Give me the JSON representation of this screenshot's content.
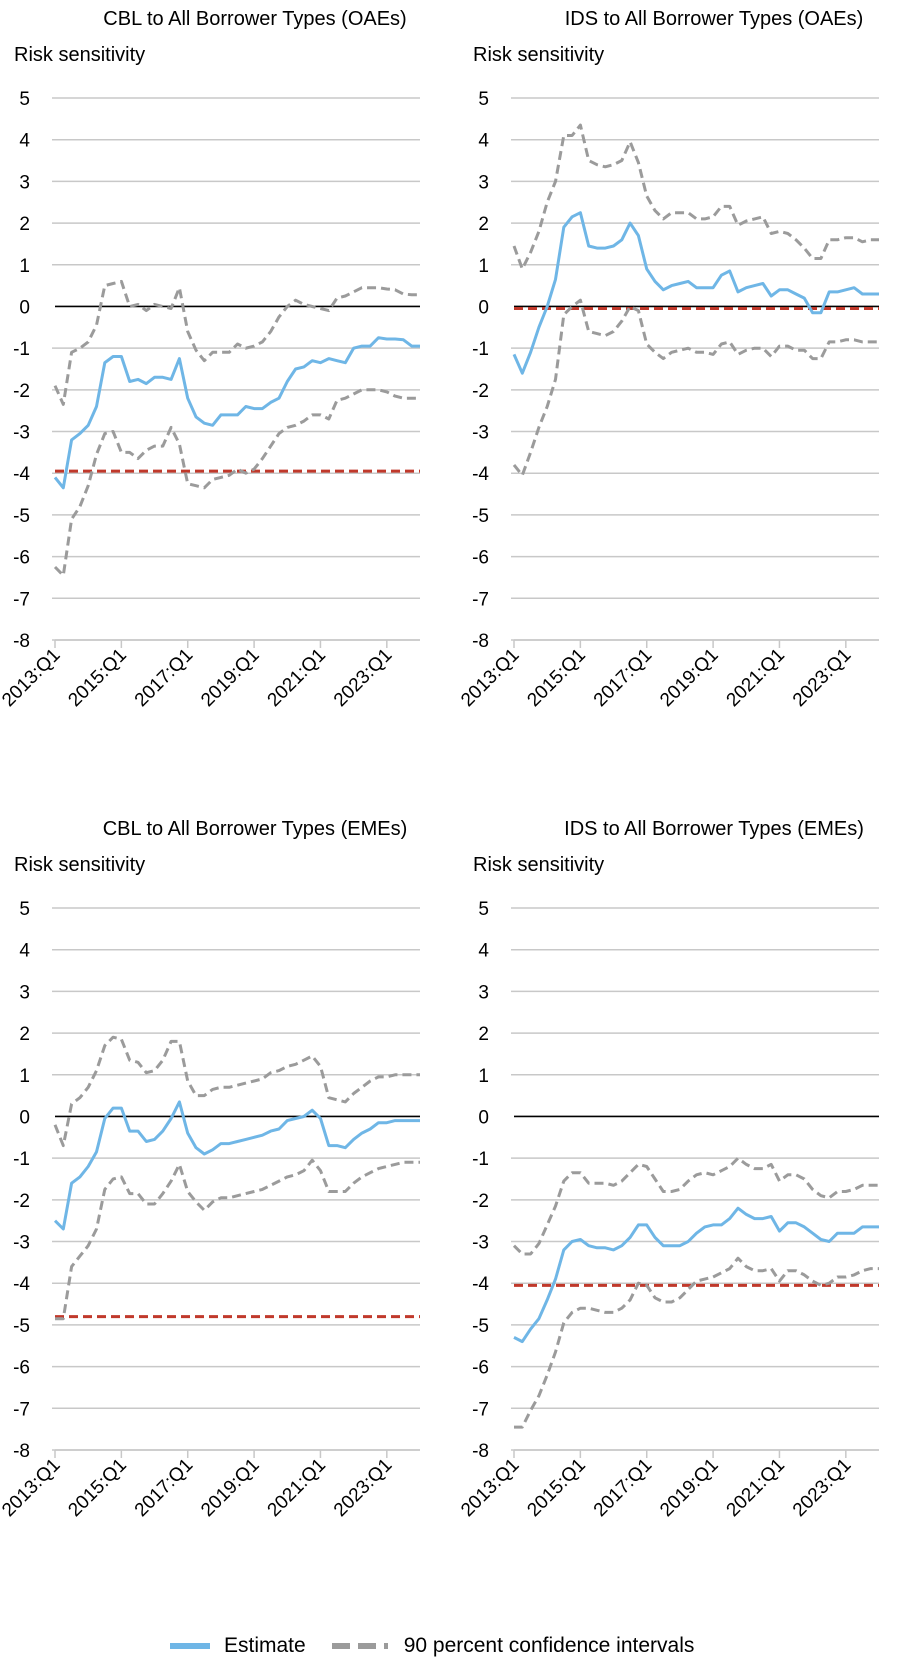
{
  "colors": {
    "estimate": "#6fb6e6",
    "confidence": "#9b9b9b",
    "threshold": "#c0392b",
    "zero": "#000000",
    "grid": "#c8c8c8"
  },
  "legend": {
    "estimate_label": "Estimate",
    "ci_label": "90 percent confidence intervals"
  },
  "chart_data": [
    {
      "type": "line",
      "title": "CBL to All Borrower Types (OAEs)",
      "ylabel": "Risk sensitivity",
      "ylim": [
        -8,
        5
      ],
      "yticks": [
        5,
        4,
        3,
        2,
        1,
        0,
        -1,
        -2,
        -3,
        -4,
        -5,
        -6,
        -7,
        -8
      ],
      "xticks": [
        "2013:Q1",
        "2015:Q1",
        "2017:Q1",
        "2019:Q1",
        "2021:Q1",
        "2023:Q1"
      ],
      "threshold": -3.95,
      "series": [
        {
          "name": "Estimate",
          "values": [
            -4.1,
            -4.35,
            -3.2,
            -3.05,
            -2.85,
            -2.4,
            -1.35,
            -1.2,
            -1.2,
            -1.8,
            -1.75,
            -1.85,
            -1.7,
            -1.7,
            -1.75,
            -1.25,
            -2.2,
            -2.65,
            -2.8,
            -2.85,
            -2.6,
            -2.6,
            -2.6,
            -2.4,
            -2.45,
            -2.45,
            -2.3,
            -2.2,
            -1.8,
            -1.5,
            -1.45,
            -1.3,
            -1.35,
            -1.25,
            -1.3,
            -1.35,
            -1.0,
            -0.95,
            -0.95,
            -0.75,
            -0.78,
            -0.78,
            -0.8,
            -0.95,
            -0.95
          ]
        },
        {
          "name": "90 percent confidence intervals",
          "values": [
            -1.9,
            -2.35,
            -1.1,
            -1.0,
            -0.85,
            -0.45,
            0.5,
            0.55,
            0.6,
            0.0,
            0.05,
            -0.1,
            0.05,
            0.0,
            -0.05,
            0.45,
            -0.6,
            -1.05,
            -1.3,
            -1.1,
            -1.1,
            -1.1,
            -0.9,
            -1.0,
            -0.95,
            -0.85,
            -0.6,
            -0.25,
            0.0,
            0.15,
            0.05,
            0.0,
            -0.05,
            -0.1,
            0.2,
            0.25,
            0.35,
            0.45,
            0.45,
            0.45,
            0.42,
            0.4,
            0.3,
            0.28,
            0.28
          ]
        },
        {
          "values": [
            -6.25,
            -6.45,
            -5.1,
            -4.8,
            -4.3,
            -3.55,
            -3.05,
            -3.0,
            -3.5,
            -3.5,
            -3.65,
            -3.45,
            -3.35,
            -3.35,
            -2.9,
            -3.3,
            -4.25,
            -4.3,
            -4.35,
            -4.15,
            -4.1,
            -4.05,
            -3.9,
            -4.0,
            -3.9,
            -3.65,
            -3.35,
            -3.05,
            -2.9,
            -2.85,
            -2.75,
            -2.6,
            -2.6,
            -2.7,
            -2.25,
            -2.2,
            -2.1,
            -2.0,
            -2.0,
            -2.0,
            -2.05,
            -2.15,
            -2.2,
            -2.2,
            -2.2
          ]
        }
      ]
    },
    {
      "type": "line",
      "title": "IDS to All Borrower Types (OAEs)",
      "ylabel": "Risk sensitivity",
      "ylim": [
        -8,
        5
      ],
      "yticks": [
        5,
        4,
        3,
        2,
        1,
        0,
        -1,
        -2,
        -3,
        -4,
        -5,
        -6,
        -7,
        -8
      ],
      "xticks": [
        "2013:Q1",
        "2015:Q1",
        "2017:Q1",
        "2019:Q1",
        "2021:Q1",
        "2023:Q1"
      ],
      "threshold": -0.05,
      "series": [
        {
          "name": "Estimate",
          "values": [
            -1.15,
            -1.6,
            -1.1,
            -0.5,
            0.0,
            0.65,
            1.9,
            2.15,
            2.25,
            1.45,
            1.4,
            1.4,
            1.45,
            1.6,
            2.0,
            1.7,
            0.9,
            0.6,
            0.4,
            0.5,
            0.55,
            0.6,
            0.45,
            0.45,
            0.45,
            0.75,
            0.85,
            0.35,
            0.45,
            0.5,
            0.55,
            0.25,
            0.4,
            0.4,
            0.3,
            0.2,
            -0.15,
            -0.15,
            0.35,
            0.35,
            0.4,
            0.45,
            0.3,
            0.3,
            0.3
          ]
        },
        {
          "name": "90 percent confidence intervals",
          "values": [
            1.45,
            0.9,
            1.3,
            1.8,
            2.5,
            3.0,
            4.1,
            4.1,
            4.35,
            3.5,
            3.4,
            3.35,
            3.4,
            3.5,
            3.95,
            3.45,
            2.65,
            2.3,
            2.1,
            2.25,
            2.25,
            2.25,
            2.1,
            2.1,
            2.15,
            2.4,
            2.4,
            1.95,
            2.05,
            2.1,
            2.15,
            1.75,
            1.8,
            1.75,
            1.6,
            1.4,
            1.15,
            1.15,
            1.6,
            1.6,
            1.65,
            1.65,
            1.55,
            1.6,
            1.6
          ]
        },
        {
          "values": [
            -3.8,
            -4.05,
            -3.5,
            -2.9,
            -2.4,
            -1.75,
            -0.2,
            0.0,
            0.15,
            -0.6,
            -0.65,
            -0.7,
            -0.6,
            -0.35,
            0.0,
            -0.1,
            -0.9,
            -1.1,
            -1.25,
            -1.1,
            -1.05,
            -1.0,
            -1.1,
            -1.1,
            -1.15,
            -0.9,
            -0.85,
            -1.15,
            -1.05,
            -1.0,
            -1.0,
            -1.2,
            -0.95,
            -0.95,
            -1.05,
            -1.05,
            -1.25,
            -1.25,
            -0.85,
            -0.85,
            -0.8,
            -0.8,
            -0.85,
            -0.85,
            -0.85
          ]
        }
      ]
    },
    {
      "type": "line",
      "title": "CBL to All Borrower Types (EMEs)",
      "ylabel": "Risk sensitivity",
      "ylim": [
        -8,
        5
      ],
      "yticks": [
        5,
        4,
        3,
        2,
        1,
        0,
        -1,
        -2,
        -3,
        -4,
        -5,
        -6,
        -7,
        -8
      ],
      "xticks": [
        "2013:Q1",
        "2015:Q1",
        "2017:Q1",
        "2019:Q1",
        "2021:Q1",
        "2023:Q1"
      ],
      "threshold": -4.8,
      "series": [
        {
          "name": "Estimate",
          "values": [
            -2.5,
            -2.7,
            -1.6,
            -1.45,
            -1.2,
            -0.85,
            -0.05,
            0.2,
            0.2,
            -0.35,
            -0.35,
            -0.6,
            -0.55,
            -0.35,
            -0.05,
            0.35,
            -0.4,
            -0.75,
            -0.9,
            -0.8,
            -0.65,
            -0.65,
            -0.6,
            -0.55,
            -0.5,
            -0.45,
            -0.35,
            -0.3,
            -0.1,
            -0.05,
            0.0,
            0.15,
            -0.05,
            -0.7,
            -0.7,
            -0.75,
            -0.55,
            -0.4,
            -0.3,
            -0.15,
            -0.15,
            -0.1,
            -0.1,
            -0.1,
            -0.1
          ]
        },
        {
          "name": "90 percent confidence intervals",
          "values": [
            -0.2,
            -0.7,
            0.3,
            0.45,
            0.7,
            1.1,
            1.7,
            1.9,
            1.85,
            1.35,
            1.3,
            1.05,
            1.1,
            1.35,
            1.8,
            1.8,
            0.85,
            0.5,
            0.5,
            0.65,
            0.7,
            0.7,
            0.75,
            0.8,
            0.85,
            0.9,
            1.05,
            1.1,
            1.2,
            1.25,
            1.35,
            1.45,
            1.2,
            0.45,
            0.4,
            0.35,
            0.55,
            0.7,
            0.85,
            0.95,
            0.95,
            1.0,
            1.0,
            1.0,
            1.0
          ]
        },
        {
          "values": [
            -4.85,
            -4.85,
            -3.6,
            -3.35,
            -3.1,
            -2.7,
            -1.75,
            -1.5,
            -1.45,
            -1.85,
            -1.85,
            -2.1,
            -2.1,
            -1.85,
            -1.55,
            -1.15,
            -1.8,
            -2.05,
            -2.25,
            -2.05,
            -1.95,
            -1.95,
            -1.9,
            -1.85,
            -1.8,
            -1.75,
            -1.65,
            -1.55,
            -1.45,
            -1.4,
            -1.3,
            -1.05,
            -1.3,
            -1.8,
            -1.8,
            -1.8,
            -1.6,
            -1.45,
            -1.35,
            -1.25,
            -1.2,
            -1.15,
            -1.1,
            -1.1,
            -1.1
          ]
        }
      ]
    },
    {
      "type": "line",
      "title": "IDS to All Borrower Types (EMEs)",
      "ylabel": "Risk sensitivity",
      "ylim": [
        -8,
        5
      ],
      "yticks": [
        5,
        4,
        3,
        2,
        1,
        0,
        -1,
        -2,
        -3,
        -4,
        -5,
        -6,
        -7,
        -8
      ],
      "xticks": [
        "2013:Q1",
        "2015:Q1",
        "2017:Q1",
        "2019:Q1",
        "2021:Q1",
        "2023:Q1"
      ],
      "threshold": -4.05,
      "series": [
        {
          "name": "Estimate",
          "values": [
            -5.3,
            -5.4,
            -5.1,
            -4.85,
            -4.4,
            -3.9,
            -3.2,
            -3.0,
            -2.95,
            -3.1,
            -3.15,
            -3.15,
            -3.2,
            -3.1,
            -2.9,
            -2.6,
            -2.6,
            -2.9,
            -3.1,
            -3.1,
            -3.1,
            -3.0,
            -2.8,
            -2.65,
            -2.6,
            -2.6,
            -2.45,
            -2.2,
            -2.35,
            -2.45,
            -2.45,
            -2.4,
            -2.75,
            -2.55,
            -2.55,
            -2.65,
            -2.8,
            -2.95,
            -3.0,
            -2.8,
            -2.8,
            -2.8,
            -2.65,
            -2.65,
            -2.65
          ]
        },
        {
          "name": "90 percent confidence intervals",
          "values": [
            -3.1,
            -3.3,
            -3.3,
            -3.05,
            -2.6,
            -2.15,
            -1.55,
            -1.35,
            -1.35,
            -1.6,
            -1.6,
            -1.6,
            -1.65,
            -1.55,
            -1.35,
            -1.15,
            -1.2,
            -1.5,
            -1.8,
            -1.8,
            -1.75,
            -1.55,
            -1.4,
            -1.35,
            -1.4,
            -1.3,
            -1.2,
            -1.0,
            -1.15,
            -1.25,
            -1.25,
            -1.15,
            -1.55,
            -1.4,
            -1.4,
            -1.5,
            -1.75,
            -1.9,
            -1.95,
            -1.8,
            -1.8,
            -1.75,
            -1.65,
            -1.65,
            -1.65
          ]
        },
        {
          "values": [
            -7.45,
            -7.45,
            -7.05,
            -6.7,
            -6.2,
            -5.65,
            -4.95,
            -4.7,
            -4.6,
            -4.6,
            -4.65,
            -4.7,
            -4.7,
            -4.6,
            -4.4,
            -4.0,
            -4.05,
            -4.35,
            -4.45,
            -4.45,
            -4.35,
            -4.15,
            -3.95,
            -3.9,
            -3.85,
            -3.75,
            -3.65,
            -3.4,
            -3.6,
            -3.7,
            -3.7,
            -3.65,
            -3.95,
            -3.7,
            -3.7,
            -3.8,
            -3.95,
            -4.05,
            -4.0,
            -3.85,
            -3.85,
            -3.8,
            -3.7,
            -3.65,
            -3.65
          ]
        }
      ]
    }
  ]
}
